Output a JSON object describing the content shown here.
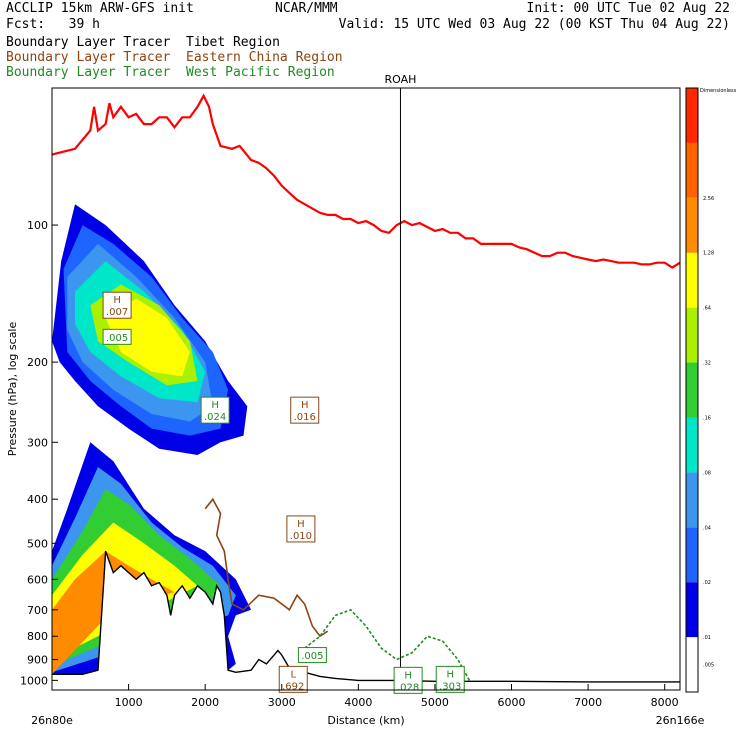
{
  "header": {
    "line1_left": "ACCLIP 15km ARW-GFS init",
    "line1_center": "NCAR/MMM",
    "line1_right": "Init: 00 UTC Tue 02 Aug 22",
    "line2_left": "Fcst:   39 h",
    "line2_right": "Valid: 15 UTC Wed 03 Aug 22 (00 KST Thu 04 Aug 22)"
  },
  "legend": [
    {
      "label": "Boundary Layer Tracer  Tibet Region",
      "color": "#000000"
    },
    {
      "label": "Boundary Layer Tracer  Eastern China Region",
      "color": "#8b4513"
    },
    {
      "label": "Boundary Layer Tracer  West Pacific Region",
      "color": "#228b22"
    }
  ],
  "chart_data": {
    "type": "cross-section",
    "xlabel": "Distance (km)",
    "ylabel": "Pressure (hPa), log scale",
    "xlim": [
      0,
      8200
    ],
    "ylim": [
      1050,
      50
    ],
    "x_ticks": [
      1000,
      2000,
      3000,
      4000,
      5000,
      6000,
      7000,
      8000
    ],
    "y_ticks": [
      100,
      200,
      300,
      400,
      500,
      600,
      700,
      800,
      900,
      1000
    ],
    "left_endpoint": "26n80e",
    "right_endpoint": "26n166e",
    "marker": {
      "label": "ROAH",
      "x": 4550
    },
    "colorbar": {
      "top_label": "Dimensionless",
      "levels": [
        ".005",
        ".01",
        ".02",
        ".04",
        ".08",
        ".16",
        ".32",
        ".64",
        "1.28",
        "2.56"
      ],
      "colors": [
        "#ffffff",
        "#0000e6",
        "#1e64ff",
        "#3c96f0",
        "#00e6c8",
        "#32cd32",
        "#aaf000",
        "#ffff00",
        "#ff8c00",
        "#ff6400",
        "#ff2800"
      ]
    },
    "tropopause_color": "#ff0000",
    "tropopause": [
      [
        0,
        70
      ],
      [
        300,
        68
      ],
      [
        500,
        62
      ],
      [
        550,
        55
      ],
      [
        600,
        62
      ],
      [
        700,
        60
      ],
      [
        750,
        54
      ],
      [
        800,
        58
      ],
      [
        900,
        55
      ],
      [
        1000,
        58
      ],
      [
        1100,
        57
      ],
      [
        1200,
        60
      ],
      [
        1300,
        60
      ],
      [
        1400,
        58
      ],
      [
        1500,
        58
      ],
      [
        1600,
        61
      ],
      [
        1700,
        58
      ],
      [
        1800,
        58
      ],
      [
        1900,
        55
      ],
      [
        1980,
        52
      ],
      [
        2050,
        55
      ],
      [
        2100,
        60
      ],
      [
        2200,
        67
      ],
      [
        2350,
        68
      ],
      [
        2450,
        67
      ],
      [
        2600,
        72
      ],
      [
        2700,
        73
      ],
      [
        2800,
        75
      ],
      [
        2900,
        78
      ],
      [
        3000,
        82
      ],
      [
        3100,
        85
      ],
      [
        3200,
        88
      ],
      [
        3300,
        90
      ],
      [
        3400,
        92
      ],
      [
        3500,
        94
      ],
      [
        3600,
        95
      ],
      [
        3700,
        95
      ],
      [
        3800,
        97
      ],
      [
        3900,
        97
      ],
      [
        4000,
        99
      ],
      [
        4100,
        98
      ],
      [
        4200,
        100
      ],
      [
        4300,
        103
      ],
      [
        4400,
        104
      ],
      [
        4500,
        100
      ],
      [
        4600,
        98
      ],
      [
        4700,
        100
      ],
      [
        4800,
        99
      ],
      [
        4900,
        101
      ],
      [
        5000,
        103
      ],
      [
        5100,
        102
      ],
      [
        5200,
        104
      ],
      [
        5300,
        104
      ],
      [
        5400,
        107
      ],
      [
        5500,
        107
      ],
      [
        5600,
        110
      ],
      [
        5700,
        110
      ],
      [
        5800,
        110
      ],
      [
        5900,
        110
      ],
      [
        6000,
        110
      ],
      [
        6100,
        112
      ],
      [
        6200,
        113
      ],
      [
        6300,
        115
      ],
      [
        6400,
        117
      ],
      [
        6500,
        117
      ],
      [
        6600,
        115
      ],
      [
        6700,
        115
      ],
      [
        6800,
        117
      ],
      [
        6900,
        118
      ],
      [
        7000,
        119
      ],
      [
        7100,
        120
      ],
      [
        7200,
        119
      ],
      [
        7300,
        120
      ],
      [
        7400,
        121
      ],
      [
        7500,
        121
      ],
      [
        7600,
        121
      ],
      [
        7700,
        122
      ],
      [
        7800,
        122
      ],
      [
        7900,
        121
      ],
      [
        8000,
        121
      ],
      [
        8100,
        124
      ],
      [
        8200,
        121
      ]
    ],
    "terrain": [
      [
        0,
        970
      ],
      [
        400,
        970
      ],
      [
        600,
        950
      ],
      [
        680,
        590
      ],
      [
        700,
        520
      ],
      [
        800,
        580
      ],
      [
        900,
        560
      ],
      [
        1000,
        580
      ],
      [
        1100,
        600
      ],
      [
        1200,
        580
      ],
      [
        1300,
        620
      ],
      [
        1400,
        610
      ],
      [
        1500,
        650
      ],
      [
        1550,
        720
      ],
      [
        1600,
        650
      ],
      [
        1700,
        620
      ],
      [
        1800,
        660
      ],
      [
        1900,
        620
      ],
      [
        2000,
        640
      ],
      [
        2100,
        680
      ],
      [
        2150,
        620
      ],
      [
        2200,
        640
      ],
      [
        2250,
        720
      ],
      [
        2300,
        950
      ],
      [
        2400,
        960
      ],
      [
        2600,
        950
      ],
      [
        2700,
        900
      ],
      [
        2800,
        920
      ],
      [
        2900,
        880
      ],
      [
        2950,
        860
      ],
      [
        3000,
        880
      ],
      [
        3100,
        940
      ],
      [
        3200,
        950
      ],
      [
        3300,
        960
      ],
      [
        3500,
        980
      ],
      [
        3700,
        990
      ],
      [
        4000,
        1000
      ],
      [
        4500,
        1000
      ],
      [
        5000,
        1005
      ],
      [
        6000,
        1005
      ],
      [
        7000,
        1008
      ],
      [
        8200,
        1008
      ]
    ],
    "filled_regions": [
      {
        "level": ".01",
        "color": "#0000e6",
        "points": [
          [
            120,
            120
          ],
          [
            300,
            90
          ],
          [
            700,
            100
          ],
          [
            1200,
            120
          ],
          [
            1600,
            150
          ],
          [
            2000,
            180
          ],
          [
            2300,
            220
          ],
          [
            2550,
            250
          ],
          [
            2500,
            290
          ],
          [
            2200,
            300
          ],
          [
            1900,
            320
          ],
          [
            1400,
            310
          ],
          [
            1000,
            280
          ],
          [
            600,
            250
          ],
          [
            300,
            220
          ],
          [
            100,
            200
          ],
          [
            0,
            180
          ]
        ]
      },
      {
        "level": ".02",
        "color": "#1e64ff",
        "points": [
          [
            150,
            125
          ],
          [
            400,
            100
          ],
          [
            800,
            110
          ],
          [
            1300,
            130
          ],
          [
            1700,
            160
          ],
          [
            2100,
            190
          ],
          [
            2300,
            230
          ],
          [
            2200,
            280
          ],
          [
            1800,
            290
          ],
          [
            1300,
            280
          ],
          [
            900,
            250
          ],
          [
            500,
            220
          ],
          [
            200,
            190
          ]
        ]
      },
      {
        "level": ".04",
        "color": "#3c96f0",
        "points": [
          [
            200,
            130
          ],
          [
            600,
            110
          ],
          [
            1100,
            130
          ],
          [
            1600,
            160
          ],
          [
            2000,
            200
          ],
          [
            2100,
            250
          ],
          [
            1800,
            270
          ],
          [
            1300,
            260
          ],
          [
            800,
            230
          ],
          [
            400,
            200
          ],
          [
            200,
            170
          ]
        ]
      },
      {
        "level": ".08",
        "color": "#00e6c8",
        "points": [
          [
            300,
            140
          ],
          [
            700,
            120
          ],
          [
            1200,
            140
          ],
          [
            1700,
            170
          ],
          [
            2000,
            210
          ],
          [
            1900,
            245
          ],
          [
            1400,
            240
          ],
          [
            900,
            215
          ],
          [
            500,
            190
          ],
          [
            300,
            165
          ]
        ]
      },
      {
        "level": ".32",
        "color": "#aaf000",
        "points": [
          [
            500,
            150
          ],
          [
            900,
            135
          ],
          [
            1400,
            150
          ],
          [
            1800,
            180
          ],
          [
            1900,
            220
          ],
          [
            1500,
            225
          ],
          [
            1000,
            200
          ],
          [
            600,
            180
          ]
        ]
      },
      {
        "level": ".64",
        "color": "#ffff00",
        "points": [
          [
            700,
            160
          ],
          [
            1100,
            145
          ],
          [
            1500,
            160
          ],
          [
            1800,
            190
          ],
          [
            1700,
            215
          ],
          [
            1300,
            210
          ],
          [
            900,
            190
          ]
        ]
      },
      {
        "level": ".01",
        "color": "#0000e6",
        "points": [
          [
            0,
            520
          ],
          [
            200,
            420
          ],
          [
            500,
            300
          ],
          [
            800,
            330
          ],
          [
            1200,
            420
          ],
          [
            1600,
            480
          ],
          [
            2000,
            520
          ],
          [
            2400,
            600
          ],
          [
            2600,
            700
          ],
          [
            2400,
            720
          ],
          [
            2300,
            800
          ],
          [
            2400,
            920
          ],
          [
            2300,
            950
          ],
          [
            0,
            1000
          ]
        ]
      },
      {
        "level": ".04",
        "color": "#3c96f0",
        "points": [
          [
            0,
            560
          ],
          [
            300,
            440
          ],
          [
            600,
            340
          ],
          [
            900,
            370
          ],
          [
            1300,
            450
          ],
          [
            1700,
            510
          ],
          [
            2100,
            560
          ],
          [
            2400,
            650
          ],
          [
            2300,
            720
          ],
          [
            0,
            960
          ]
        ]
      },
      {
        "level": ".16",
        "color": "#32cd32",
        "points": [
          [
            0,
            600
          ],
          [
            400,
            470
          ],
          [
            700,
            380
          ],
          [
            1000,
            410
          ],
          [
            1400,
            480
          ],
          [
            1800,
            540
          ],
          [
            2200,
            620
          ],
          [
            2100,
            660
          ],
          [
            0,
            930
          ]
        ]
      },
      {
        "level": ".64",
        "color": "#ffff00",
        "points": [
          [
            0,
            650
          ],
          [
            400,
            530
          ],
          [
            800,
            450
          ],
          [
            1200,
            500
          ],
          [
            1600,
            560
          ],
          [
            1900,
            620
          ],
          [
            0,
            900
          ]
        ]
      },
      {
        "level": "1.28",
        "color": "#ff8c00",
        "points": [
          [
            0,
            700
          ],
          [
            300,
            600
          ],
          [
            700,
            520
          ],
          [
            1000,
            560
          ],
          [
            1300,
            600
          ],
          [
            1600,
            640
          ],
          [
            800,
            700
          ],
          [
            0,
            970
          ]
        ]
      }
    ],
    "brown_contour": [
      [
        2000,
        420
      ],
      [
        2100,
        400
      ],
      [
        2200,
        430
      ],
      [
        2150,
        480
      ],
      [
        2250,
        520
      ],
      [
        2300,
        600
      ],
      [
        2350,
        680
      ],
      [
        2500,
        700
      ],
      [
        2700,
        650
      ],
      [
        2900,
        660
      ],
      [
        3100,
        700
      ],
      [
        3200,
        650
      ],
      [
        3300,
        680
      ],
      [
        3400,
        760
      ],
      [
        3500,
        800
      ],
      [
        3600,
        780
      ]
    ],
    "green_contour": [
      [
        3300,
        850
      ],
      [
        3500,
        800
      ],
      [
        3700,
        720
      ],
      [
        3900,
        700
      ],
      [
        4100,
        760
      ],
      [
        4300,
        850
      ],
      [
        4500,
        900
      ],
      [
        4700,
        870
      ],
      [
        4900,
        800
      ],
      [
        5100,
        820
      ],
      [
        5300,
        900
      ],
      [
        5450,
        1000
      ]
    ],
    "annotations": [
      {
        "symbol": "H",
        "value": ".007",
        "x": 850,
        "p": 150,
        "color": "#8b4513"
      },
      {
        "symbol": "",
        "value": ".005",
        "x": 850,
        "p": 176,
        "color": "#228b22"
      },
      {
        "symbol": "H",
        "value": ".024",
        "x": 2130,
        "p": 255,
        "color": "#228b22"
      },
      {
        "symbol": "H",
        "value": ".016",
        "x": 3300,
        "p": 255,
        "color": "#8b4513"
      },
      {
        "symbol": "H",
        "value": ".010",
        "x": 3250,
        "p": 465,
        "color": "#8b4513"
      },
      {
        "symbol": "",
        "value": ".005",
        "x": 3400,
        "p": 880,
        "color": "#228b22"
      },
      {
        "symbol": "L",
        "value": ".692",
        "x": 3150,
        "p": 995,
        "color": "#8b4513"
      },
      {
        "symbol": "H",
        "value": ".028",
        "x": 4650,
        "p": 1000,
        "color": "#228b22"
      },
      {
        "symbol": "H",
        "value": ".303",
        "x": 5200,
        "p": 995,
        "color": "#228b22"
      }
    ]
  }
}
